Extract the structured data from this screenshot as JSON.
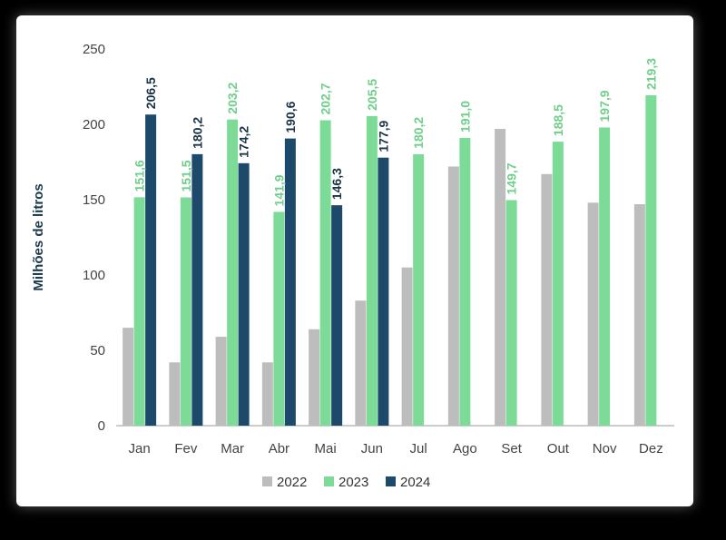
{
  "chart_data": {
    "type": "bar",
    "title": "",
    "xlabel": "",
    "ylabel": "Milhões de litros",
    "ylim": [
      0,
      250
    ],
    "yticks": [
      "0",
      "50",
      "100",
      "150",
      "200",
      "250"
    ],
    "grid": false,
    "legend_position": "bottom-center",
    "categories": [
      "Jan",
      "Fev",
      "Mar",
      "Abr",
      "Mai",
      "Jun",
      "Jul",
      "Ago",
      "Set",
      "Out",
      "Nov",
      "Dez"
    ],
    "series": [
      {
        "name": "2022",
        "color": "#bdbdbd",
        "values": [
          65,
          42,
          59,
          42,
          64,
          83,
          105,
          172,
          197,
          167,
          148,
          147
        ],
        "labels": null
      },
      {
        "name": "2023",
        "color": "#7ddb98",
        "label_color": "#6fcf8a",
        "values": [
          151.6,
          151.5,
          203.2,
          141.9,
          202.7,
          205.5,
          180.2,
          191.0,
          149.7,
          188.5,
          197.9,
          219.3
        ],
        "labels": [
          "151,6",
          "151,5",
          "203,2",
          "141,9",
          "202,7",
          "205,5",
          "180,2",
          "191,0",
          "149,7",
          "188,5",
          "197,9",
          "219,3"
        ]
      },
      {
        "name": "2024",
        "color": "#1d4a6b",
        "label_color": "#1a3447",
        "values": [
          206.5,
          180.2,
          174.2,
          190.6,
          146.3,
          177.9,
          null,
          null,
          null,
          null,
          null,
          null
        ],
        "labels": [
          "206,5",
          "180,2",
          "174,2",
          "190,6",
          "146,3",
          "177,9",
          null,
          null,
          null,
          null,
          null,
          null
        ]
      }
    ]
  }
}
